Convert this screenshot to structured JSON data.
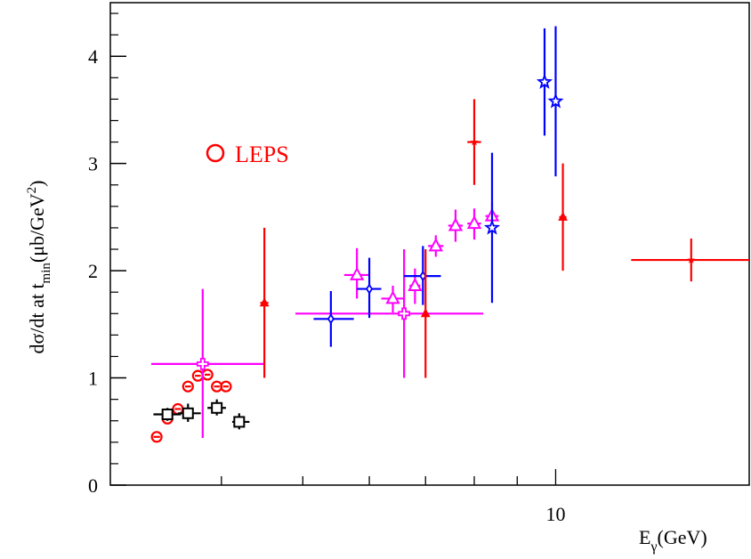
{
  "chart_data": {
    "type": "scatter",
    "xscale": "log",
    "xlim": [
      2.95,
      17.0
    ],
    "ylim": [
      0,
      4.5
    ],
    "xlabel": "E",
    "xlabel_sub": "γ",
    "xlabel_unit": "(GeV)",
    "ylabel_parts": {
      "a": "dσ/dt at t",
      "a_sub": "min",
      "b": "(μb/GeV",
      "b_sup": "2",
      "c": ")"
    },
    "y_ticks": [
      {
        "value": 0,
        "label": "0"
      },
      {
        "value": 1,
        "label": "1"
      },
      {
        "value": 2,
        "label": "2"
      },
      {
        "value": 3,
        "label": "3"
      },
      {
        "value": 4,
        "label": "4"
      }
    ],
    "x_major_ticks": [
      {
        "value": 10,
        "label": "10"
      }
    ],
    "x_minor_ticks": [
      4,
      5,
      6,
      7,
      8,
      9,
      10
    ],
    "legend": [
      {
        "marker": "circle",
        "label": "LEPS",
        "color": "#ff0000"
      }
    ],
    "series": [
      {
        "marker": "circle",
        "color": "#ff0000",
        "points": [
          {
            "x": 3.35,
            "y": 0.45,
            "xerr": [
              3.32,
              3.38
            ],
            "yerr": [
              0.45,
              0.45
            ]
          },
          {
            "x": 3.45,
            "y": 0.62,
            "xerr": [
              3.42,
              3.48
            ],
            "yerr": [
              0.62,
              0.62
            ]
          },
          {
            "x": 3.55,
            "y": 0.71,
            "xerr": [
              3.52,
              3.58
            ],
            "yerr": [
              0.71,
              0.71
            ]
          },
          {
            "x": 3.65,
            "y": 0.92,
            "xerr": [
              3.62,
              3.68
            ],
            "yerr": [
              0.92,
              0.92
            ]
          },
          {
            "x": 3.75,
            "y": 1.02,
            "xerr": [
              3.72,
              3.78
            ],
            "yerr": [
              1.02,
              1.02
            ]
          },
          {
            "x": 3.85,
            "y": 1.03,
            "xerr": [
              3.82,
              3.88
            ],
            "yerr": [
              1.03,
              1.03
            ]
          },
          {
            "x": 3.95,
            "y": 0.92,
            "xerr": [
              3.92,
              3.98
            ],
            "yerr": [
              0.92,
              0.92
            ]
          },
          {
            "x": 4.05,
            "y": 0.92,
            "xerr": [
              4.02,
              4.08
            ],
            "yerr": [
              0.92,
              0.92
            ]
          }
        ]
      },
      {
        "marker": "open-square",
        "color": "#000000",
        "points": [
          {
            "x": 3.45,
            "y": 0.66,
            "xerr": [
              3.32,
              3.58
            ],
            "yerr": [
              0.6,
              0.72
            ]
          },
          {
            "x": 3.65,
            "y": 0.67,
            "xerr": [
              3.55,
              3.78
            ],
            "yerr": [
              0.59,
              0.76
            ]
          },
          {
            "x": 3.95,
            "y": 0.72,
            "xerr": [
              3.85,
              4.05
            ],
            "yerr": [
              0.65,
              0.8
            ]
          },
          {
            "x": 4.2,
            "y": 0.59,
            "xerr": [
              4.12,
              4.32
            ],
            "yerr": [
              0.52,
              0.67
            ]
          }
        ]
      },
      {
        "marker": "open-triangle",
        "color": "#ff00ff",
        "points": [
          {
            "x": 5.8,
            "y": 1.96,
            "xerr": [
              5.6,
              6.0
            ],
            "yerr": [
              1.74,
              2.21
            ]
          },
          {
            "x": 6.4,
            "y": 1.74,
            "xerr": [
              6.2,
              6.6
            ],
            "yerr": [
              1.61,
              1.86
            ]
          },
          {
            "x": 6.8,
            "y": 1.86,
            "xerr": [
              6.7,
              6.9
            ],
            "yerr": [
              1.69,
              2.02
            ]
          },
          {
            "x": 7.2,
            "y": 2.23,
            "xerr": [
              7.05,
              7.35
            ],
            "yerr": [
              2.13,
              2.33
            ]
          },
          {
            "x": 7.6,
            "y": 2.42,
            "xerr": [
              7.45,
              7.75
            ],
            "yerr": [
              2.27,
              2.57
            ]
          },
          {
            "x": 8.0,
            "y": 2.44,
            "xerr": [
              7.85,
              8.15
            ],
            "yerr": [
              2.29,
              2.58
            ]
          },
          {
            "x": 8.4,
            "y": 2.51,
            "xerr": [
              8.25,
              8.55
            ],
            "yerr": [
              2.4,
              2.64
            ]
          }
        ]
      },
      {
        "marker": "open-cross",
        "color": "#ff00ff",
        "points": [
          {
            "x": 3.8,
            "y": 1.13,
            "xerr": [
              3.3,
              4.5
            ],
            "yerr": [
              0.44,
              1.83
            ]
          },
          {
            "x": 6.6,
            "y": 1.6,
            "xerr": [
              4.9,
              8.2
            ],
            "yerr": [
              1.0,
              2.2
            ]
          }
        ]
      },
      {
        "marker": "open-diamond",
        "color": "#0000ff",
        "points": [
          {
            "x": 5.4,
            "y": 1.55,
            "xerr": [
              5.15,
              5.75
            ],
            "yerr": [
              1.29,
              1.81
            ]
          },
          {
            "x": 6.0,
            "y": 1.83,
            "xerr": [
              5.8,
              6.2
            ],
            "yerr": [
              1.56,
              2.12
            ]
          },
          {
            "x": 6.95,
            "y": 1.95,
            "xerr": [
              6.6,
              7.3
            ],
            "yerr": [
              1.68,
              2.23
            ]
          }
        ]
      },
      {
        "marker": "open-star",
        "color": "#0000ff",
        "points": [
          {
            "x": 8.4,
            "y": 2.4,
            "xerr": [
              8.4,
              8.4
            ],
            "yerr": [
              1.7,
              3.1
            ]
          },
          {
            "x": 9.7,
            "y": 3.76,
            "xerr": [
              9.7,
              9.7
            ],
            "yerr": [
              3.26,
              4.26
            ]
          },
          {
            "x": 10.0,
            "y": 3.58,
            "xerr": [
              10.0,
              10.0
            ],
            "yerr": [
              2.88,
              4.28
            ]
          }
        ]
      },
      {
        "marker": "filled-triangle",
        "color": "#ff0000",
        "points": [
          {
            "x": 4.5,
            "y": 1.7,
            "xerr": [
              4.45,
              4.55
            ],
            "yerr": [
              1.0,
              2.4
            ]
          },
          {
            "x": 7.0,
            "y": 1.6,
            "xerr": [
              7.0,
              7.0
            ],
            "yerr": [
              1.0,
              2.2
            ]
          },
          {
            "x": 10.2,
            "y": 2.5,
            "xerr": [
              10.1,
              10.3
            ],
            "yerr": [
              2.0,
              3.0
            ]
          }
        ]
      },
      {
        "marker": "filled-star",
        "color": "#ff0000",
        "points": [
          {
            "x": 8.0,
            "y": 3.2,
            "xerr": [
              7.85,
              8.15
            ],
            "yerr": [
              2.8,
              3.6
            ]
          },
          {
            "x": 14.5,
            "y": 2.1,
            "xerr": [
              12.3,
              17.0
            ],
            "yerr": [
              1.9,
              2.3
            ]
          }
        ]
      }
    ]
  }
}
